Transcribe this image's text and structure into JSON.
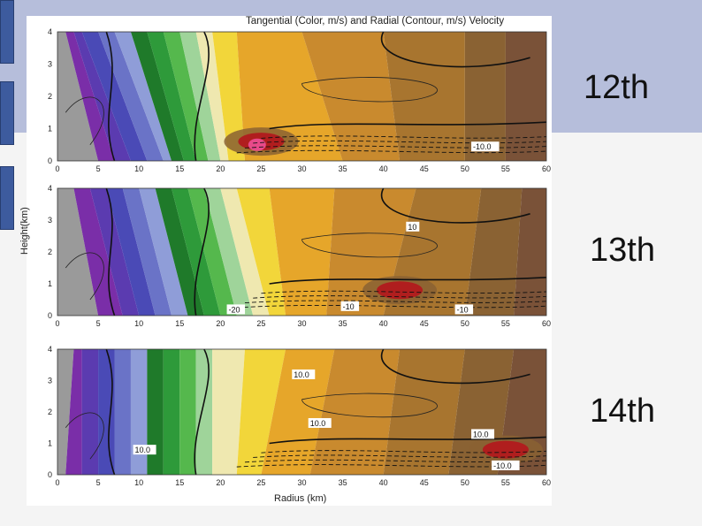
{
  "slide": {
    "colors": {
      "top_band": "#b6bedb",
      "bottom_band": "#f4f4f4",
      "side_bars": "#3d5b9e"
    }
  },
  "chart_data": {
    "type": "heatmap",
    "title": "Tangential (Color, m/s) and Radial (Contour, m/s) Velocity",
    "xlabel": "Radius (km)",
    "ylabel": "Height(km)",
    "xlim": [
      0,
      60
    ],
    "ylim": [
      0,
      4
    ],
    "x_ticks": [
      "0",
      "5",
      "10",
      "15",
      "20",
      "25",
      "30",
      "35",
      "40",
      "45",
      "50",
      "55",
      "60"
    ],
    "y_ticks": [
      "0",
      "1",
      "2",
      "3",
      "4"
    ],
    "legend": "none",
    "color_scale": [
      "#9a9a9a",
      "#7a2ea8",
      "#5b3bb0",
      "#4a4ab6",
      "#6a73c7",
      "#8f9dd8",
      "#1f7a2a",
      "#2e9a3a",
      "#55b84d",
      "#9fd49a",
      "#efe8b0",
      "#f2d63a",
      "#e6a62a",
      "#c98a2e",
      "#a8752f",
      "#8a6233",
      "#7a5238",
      "#b01e1e",
      "#e84a8a"
    ],
    "panels": [
      {
        "name": "12th",
        "contour_labels": [
          {
            "text": "-10.0",
            "x": 51,
            "y": 0.35
          }
        ],
        "tangential_core": {
          "radius_km": 25,
          "height_km": 0.6
        }
      },
      {
        "name": "13th",
        "contour_labels": [
          {
            "text": "10",
            "x": 43,
            "y": 2.7
          },
          {
            "text": "-20",
            "x": 21,
            "y": 0.1
          },
          {
            "text": "-10",
            "x": 35,
            "y": 0.2
          },
          {
            "text": "-10",
            "x": 49,
            "y": 0.1
          }
        ],
        "tangential_core": {
          "radius_km": 42,
          "height_km": 0.8
        }
      },
      {
        "name": "14th",
        "contour_labels": [
          {
            "text": "10.0",
            "x": 29,
            "y": 3.1
          },
          {
            "text": "10.0",
            "x": 31,
            "y": 1.55
          },
          {
            "text": "10.0",
            "x": 9.5,
            "y": 0.7
          },
          {
            "text": "10.0",
            "x": 51,
            "y": 1.2
          },
          {
            "text": "-10.0",
            "x": 53.5,
            "y": 0.2
          }
        ],
        "tangential_core": {
          "radius_km": 55,
          "height_km": 0.8
        }
      }
    ]
  }
}
